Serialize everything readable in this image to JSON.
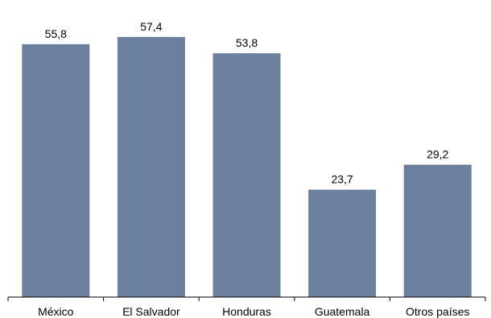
{
  "chart_data": {
    "type": "bar",
    "title": "",
    "xlabel": "",
    "ylabel": "",
    "categories": [
      "México",
      "El Salvador",
      "Honduras",
      "Guatemala",
      "Otros países"
    ],
    "values": [
      55.8,
      57.4,
      53.8,
      23.7,
      29.2
    ],
    "value_labels": [
      "55,8",
      "57,4",
      "53,8",
      "23,7",
      "29,2"
    ],
    "ylim": [
      0,
      62
    ],
    "grid": false,
    "legend": "none",
    "bar_color": "#6b7f9e",
    "axis_color": "#000000"
  }
}
